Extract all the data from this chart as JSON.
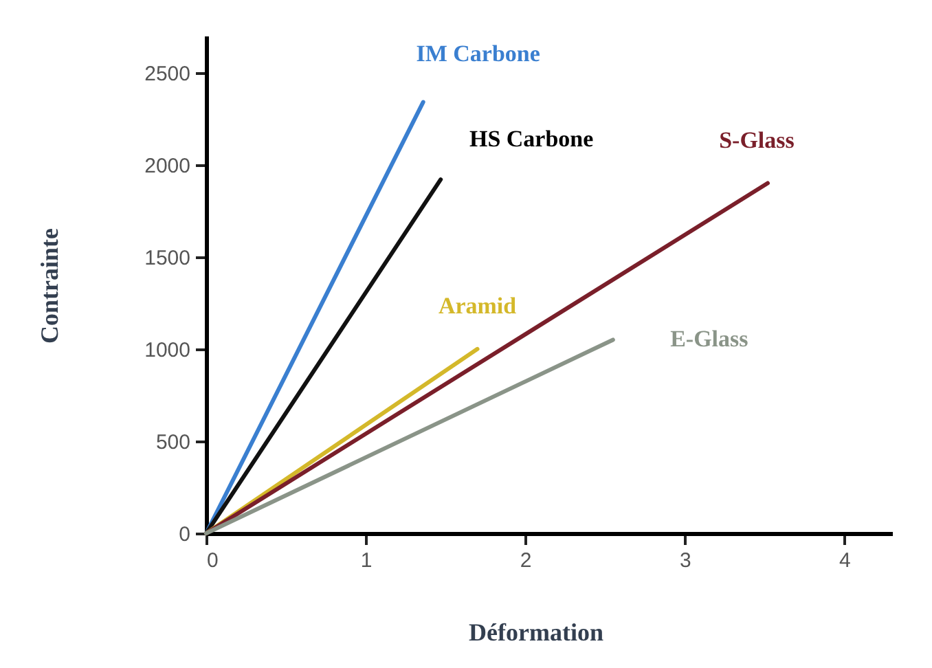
{
  "chart_data": {
    "type": "line",
    "xlabel": "Déformation",
    "ylabel": "Contrainte",
    "xlim": [
      0,
      4.3
    ],
    "ylim": [
      0,
      2700
    ],
    "xticks": [
      0,
      1,
      2,
      3,
      4
    ],
    "yticks": [
      0,
      500,
      1000,
      1500,
      2000,
      2500
    ],
    "marker": "none",
    "line_style": "solid",
    "series": [
      {
        "name": "IM Carbone",
        "color": "#3a7fd0",
        "x": [
          0,
          1.36
        ],
        "values": [
          0,
          2340
        ]
      },
      {
        "name": "HS Carbone",
        "color": "#111111",
        "x": [
          0,
          1.47
        ],
        "values": [
          0,
          1920
        ]
      },
      {
        "name": "Aramid",
        "color": "#d4b82a",
        "x": [
          0,
          1.7
        ],
        "values": [
          0,
          1000
        ]
      },
      {
        "name": "S-Glass",
        "color": "#7a1f2a",
        "x": [
          0,
          3.52
        ],
        "values": [
          0,
          1900
        ]
      },
      {
        "name": "E-Glass",
        "color": "#8a9488",
        "x": [
          0,
          2.55
        ],
        "values": [
          0,
          1050
        ]
      }
    ]
  }
}
